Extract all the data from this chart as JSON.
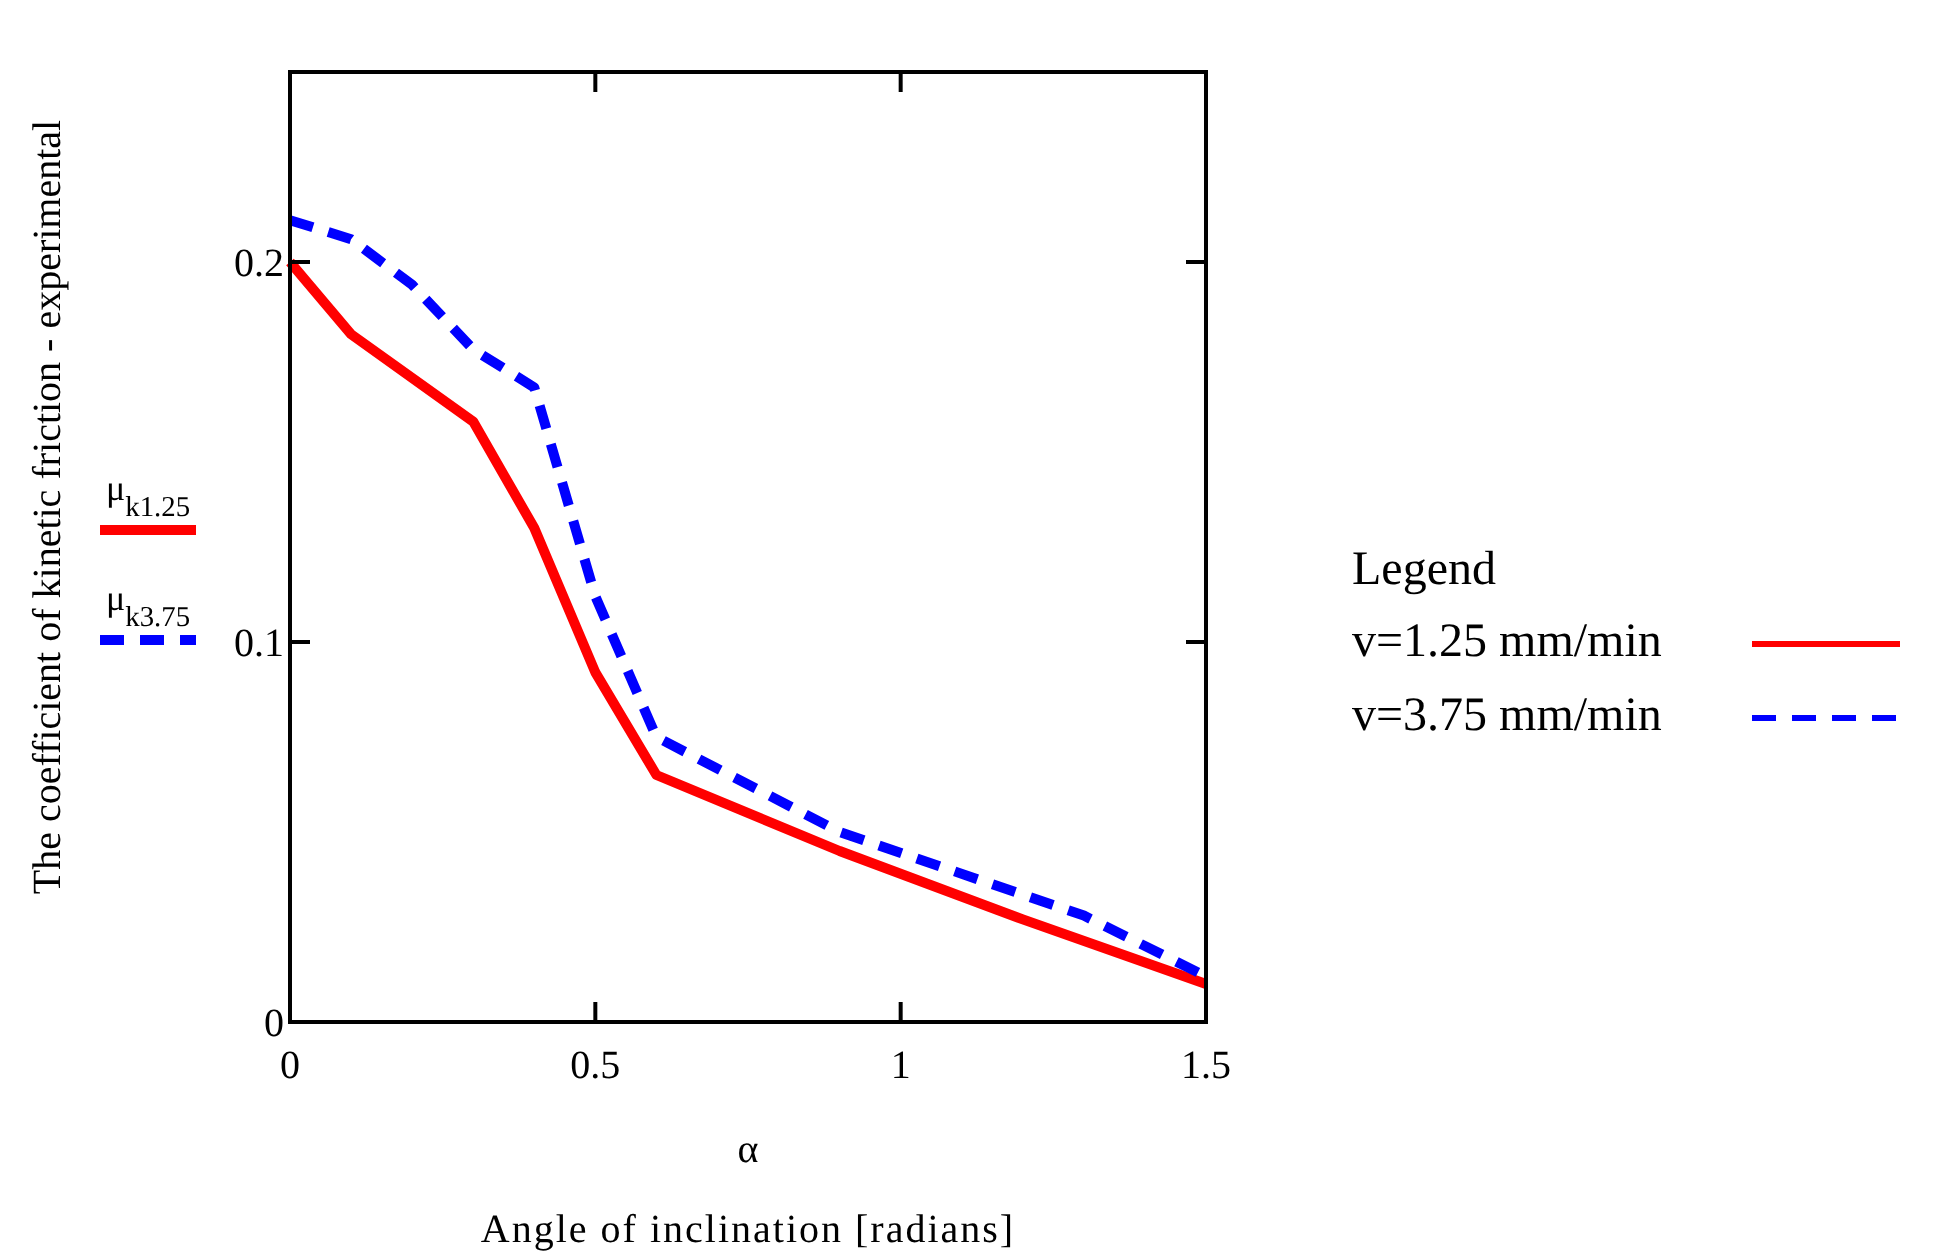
{
  "chart_data": {
    "type": "line",
    "xlabel": "α",
    "ylabel": "The coefficient of kinetic friction - experimental",
    "xlim": [
      0,
      1.5
    ],
    "xticks": [
      0,
      0.5,
      1,
      1.5
    ],
    "ylim": [
      0,
      0.25
    ],
    "yticks": [
      0,
      0.1,
      0.2
    ],
    "grid": false,
    "legend": "right",
    "legend_title": "Legend",
    "annotations": [
      "Angle of inclination [radians]",
      "μ$_{k1.25}$",
      "μ$_{k3.75}$"
    ],
    "series": [
      {
        "name": "v=1.25 mm/min",
        "color": "#ff0000",
        "line_style": "solid",
        "x": [
          0,
          0.1,
          0.3,
          0.4,
          0.5,
          0.6,
          0.9,
          1.2,
          1.5
        ],
        "values": [
          0.2,
          0.181,
          0.158,
          0.13,
          0.092,
          0.065,
          0.045,
          0.027,
          0.01
        ]
      },
      {
        "name": "v=3.75 mm/min",
        "color": "#0000ff",
        "line_style": "dashed",
        "x": [
          0,
          0.1,
          0.2,
          0.3,
          0.4,
          0.5,
          0.6,
          0.9,
          1.3,
          1.5
        ],
        "values": [
          0.211,
          0.206,
          0.194,
          0.177,
          0.167,
          0.112,
          0.075,
          0.05,
          0.028,
          0.012
        ]
      }
    ]
  }
}
